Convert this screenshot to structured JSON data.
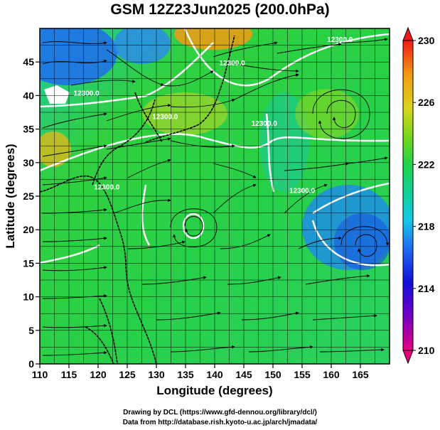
{
  "header": {
    "title": "GSM 12Z23Jun2025 (200.0hPa)"
  },
  "axes": {
    "xlabel": "Longitude (degrees)",
    "ylabel": "Latitude  (degrees)",
    "x_range": [
      110,
      170
    ],
    "y_range": [
      0,
      50
    ],
    "x_ticks": [
      "110",
      "115",
      "120",
      "125",
      "130",
      "135",
      "140",
      "145",
      "150",
      "155",
      "160",
      "165"
    ],
    "x_tick_values": [
      110,
      115,
      120,
      125,
      130,
      135,
      140,
      145,
      150,
      155,
      160,
      165
    ],
    "y_ticks": [
      "0",
      "5",
      "10",
      "15",
      "20",
      "25",
      "30",
      "35",
      "40",
      "45"
    ],
    "y_tick_values": [
      0,
      5,
      10,
      15,
      20,
      25,
      30,
      35,
      40,
      45
    ],
    "grid": true
  },
  "colorbar": {
    "labels": [
      "230",
      "226",
      "222",
      "218",
      "214",
      "210"
    ],
    "values": [
      230,
      226,
      222,
      218,
      214,
      210
    ],
    "min": 210,
    "max": 230,
    "colors": [
      "#e6007e",
      "#6a00c8",
      "#1010d8",
      "#1e6cf0",
      "#16c8e6",
      "#10d0a0",
      "#22d24a",
      "#6cd61e",
      "#d8d620",
      "#f29a14",
      "#f01818"
    ]
  },
  "contour_labels": [
    {
      "text": "12300.0",
      "lon": 161.5,
      "lat": 48.0
    },
    {
      "text": "12300.0",
      "lon": 143.0,
      "lat": 44.5
    },
    {
      "text": "12300.0",
      "lon": 148.5,
      "lat": 35.5
    },
    {
      "text": "12300.0",
      "lon": 131.5,
      "lat": 36.5
    },
    {
      "text": "12300.0",
      "lon": 121.5,
      "lat": 26.0
    },
    {
      "text": "12300.0",
      "lon": 155.0,
      "lat": 25.5
    },
    {
      "text": "12300.0",
      "lon": 118.0,
      "lat": 40.0
    }
  ],
  "credits": {
    "line1": "Drawing by DCL (https://www.gfd-dennou.org/library/dcl/)",
    "line2": "Data from http://database.rish.kyoto-u.ac.jp/arch/jmadata/"
  }
}
